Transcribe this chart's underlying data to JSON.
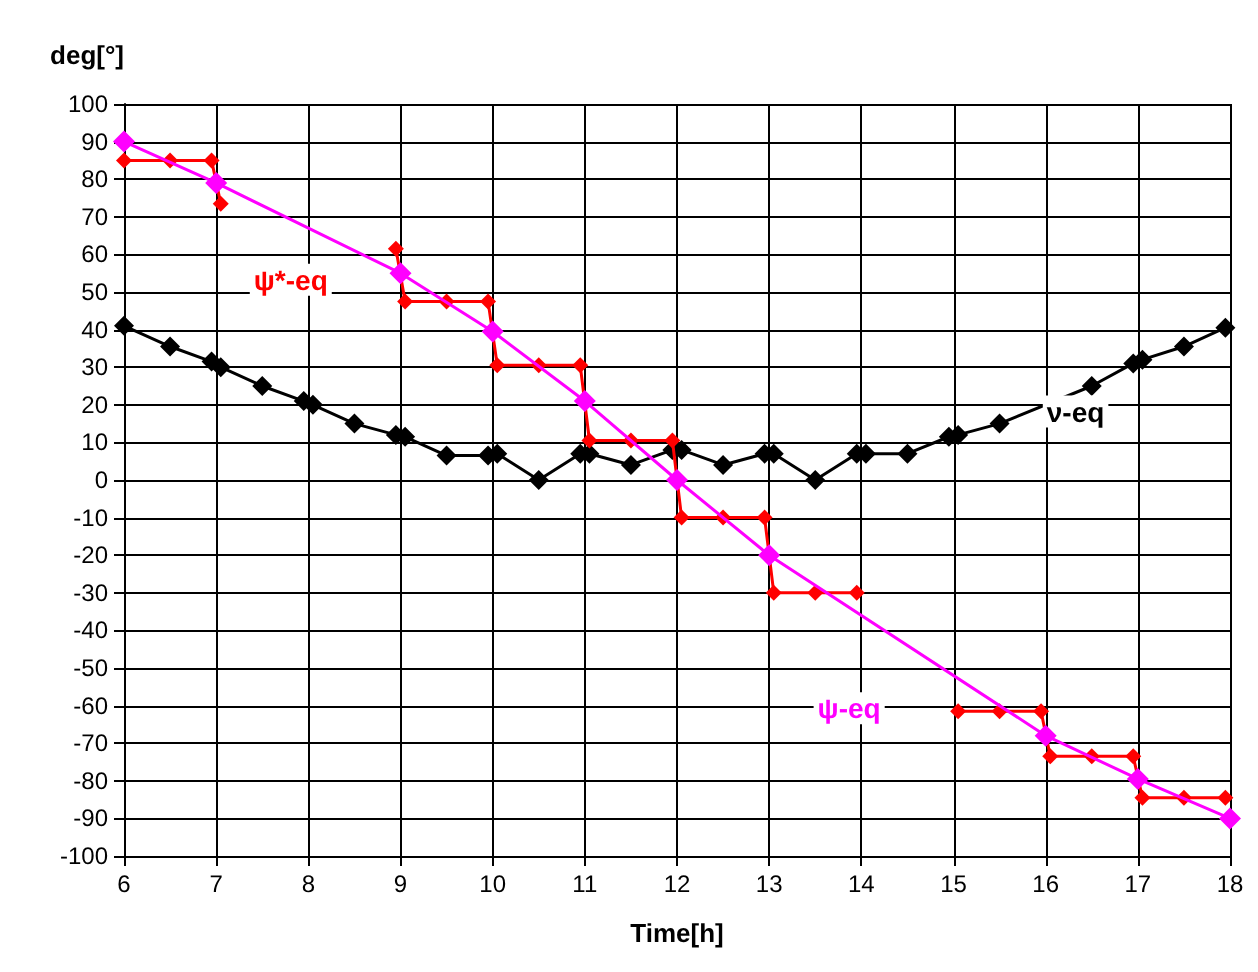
{
  "chart_data": {
    "type": "line",
    "xlabel": "Time[h]",
    "ylabel": "deg[°]",
    "xlim": [
      6,
      18
    ],
    "xticks": [
      6,
      7,
      8,
      9,
      10,
      11,
      12,
      13,
      14,
      15,
      16,
      17,
      18
    ],
    "ylim": [
      -100,
      100
    ],
    "yticks": [
      -100,
      -90,
      -80,
      -70,
      -60,
      -50,
      -40,
      -30,
      -20,
      -10,
      0,
      10,
      20,
      30,
      40,
      50,
      60,
      70,
      80,
      90,
      100
    ],
    "grid": true,
    "legend": false,
    "marker": "diamond",
    "line_style": "solid",
    "series": [
      {
        "name": "ν-eq",
        "color": "#000000",
        "x": [
          6,
          6.5,
          6.95,
          7.05,
          7.5,
          7.95,
          8.05,
          8.5,
          8.95,
          9.05,
          9.5,
          9.95,
          10.05,
          10.5,
          10.95,
          11.05,
          11.5,
          11.95,
          12.05,
          12.5,
          12.95,
          13.05,
          13.5,
          13.95,
          14.05,
          14.5,
          14.95,
          15.05,
          15.5,
          16.5,
          16.95,
          17.05,
          17.5,
          17.95
        ],
        "values": [
          41,
          35.5,
          31.5,
          30,
          25,
          21,
          20,
          15,
          12,
          11.5,
          6.5,
          6.5,
          7,
          0,
          7,
          7,
          4,
          8,
          8,
          4,
          7,
          7,
          0,
          7,
          7,
          7,
          11.5,
          12,
          15,
          25,
          31,
          32,
          35.5,
          40.5
        ]
      },
      {
        "name": "ψ*-eq",
        "color": "#ff0000",
        "x": [
          6,
          6.5,
          6.95,
          7.05,
          8,
          8.95,
          9.05,
          9.5,
          9.95,
          10.05,
          10.5,
          10.95,
          11.05,
          11.5,
          11.95,
          12.05,
          12.5,
          12.95,
          13.05,
          13.5,
          13.95,
          14.5,
          15.05,
          15.5,
          15.95,
          16.05,
          16.5,
          16.95,
          17.05,
          17.5,
          17.95
        ],
        "values": [
          85,
          85,
          85,
          73.5,
          null,
          61.5,
          47.5,
          47.5,
          47.5,
          30.5,
          30.5,
          30.5,
          10.5,
          10.5,
          10.5,
          -10,
          -10,
          -10,
          -30,
          -30,
          -30,
          null,
          -61.5,
          -61.5,
          -61.5,
          -73.5,
          -73.5,
          -73.5,
          -84.5,
          -84.5,
          -84.5
        ]
      },
      {
        "name": "ψ-eq",
        "color": "#ff00ff",
        "x": [
          6,
          7,
          9,
          10,
          11,
          12,
          13,
          16,
          17,
          18
        ],
        "values": [
          90,
          79,
          55,
          39.5,
          21,
          0,
          -20,
          -68,
          -79.5,
          -90
        ]
      }
    ]
  }
}
